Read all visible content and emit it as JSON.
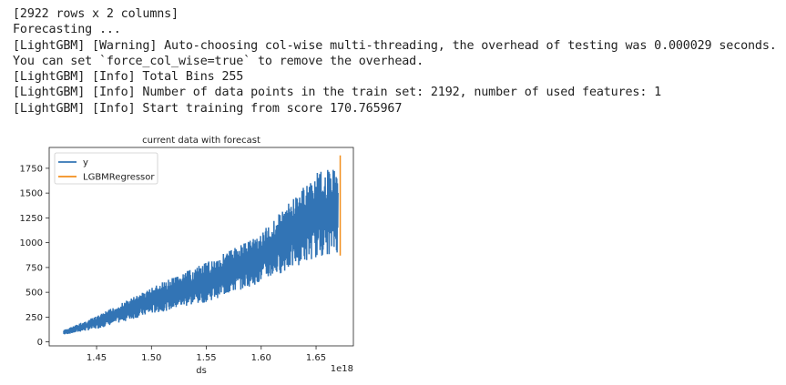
{
  "log_lines": [
    "[2922 rows x 2 columns]",
    "Forecasting ...",
    "[LightGBM] [Warning] Auto-choosing col-wise multi-threading, the overhead of testing was 0.000029 seconds.",
    "You can set `force_col_wise=true` to remove the overhead.",
    "[LightGBM] [Info] Total Bins 255",
    "[LightGBM] [Info] Number of data points in the train set: 2192, number of used features: 1",
    "[LightGBM] [Info] Start training from score 170.765967"
  ],
  "chart_data": {
    "type": "line",
    "title": "current data with forecast",
    "xlabel": "ds",
    "x_offset_label": "1e18",
    "xlim": [
      1.4068,
      1.684
    ],
    "ylim": [
      -40,
      1960
    ],
    "x_ticks": [
      1.45,
      1.5,
      1.55,
      1.6,
      1.65
    ],
    "x_tick_labels": [
      "1.45",
      "1.50",
      "1.55",
      "1.60",
      "1.65"
    ],
    "y_ticks": [
      0,
      250,
      500,
      750,
      1000,
      1250,
      1500,
      1750
    ],
    "y_tick_labels": [
      "0",
      "250",
      "500",
      "750",
      "1000",
      "1250",
      "1500",
      "1750"
    ],
    "grid": false,
    "legend_placement": "top-left",
    "series": [
      {
        "name": "y",
        "color": "#3274b5",
        "x": [
          1.42,
          1.45,
          1.5,
          1.55,
          1.6,
          1.65,
          1.67
        ],
        "y_low": [
          70,
          130,
          280,
          400,
          600,
          850,
          900
        ],
        "y_high": [
          120,
          260,
          550,
          800,
          1100,
          1700,
          1780
        ]
      },
      {
        "name": "LGBMRegressor",
        "color": "#f28e1c",
        "x": [
          1.672,
          1.672
        ],
        "y": [
          870,
          1880
        ]
      }
    ]
  }
}
